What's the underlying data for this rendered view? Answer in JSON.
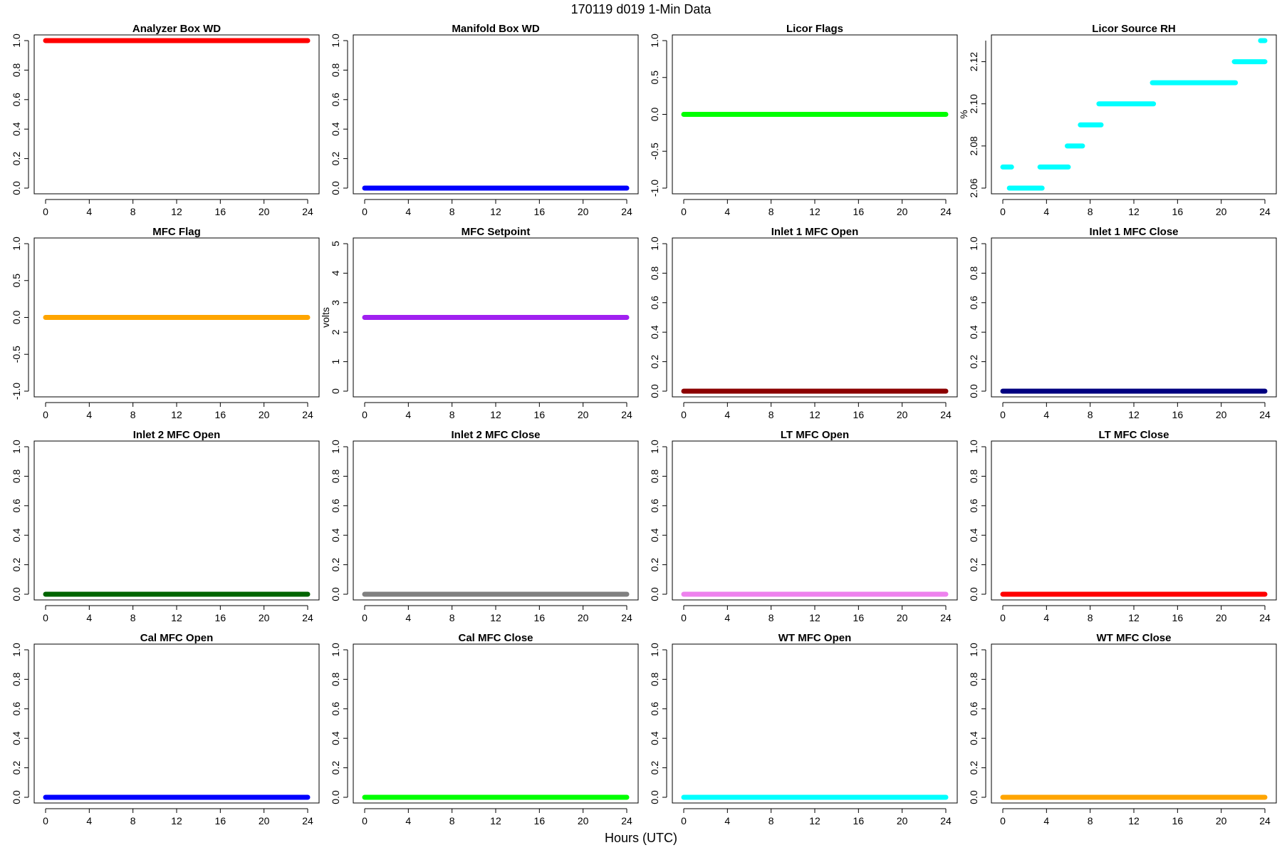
{
  "title": "170119   d019   1-Min Data",
  "xlabel": "Hours (UTC)",
  "chart_data": [
    {
      "type": "scatter",
      "title": "Analyzer Box WD",
      "ylabel": "",
      "color": "#ff0000",
      "xlim": [
        0,
        24
      ],
      "ylim": [
        0,
        1
      ],
      "xticks": [
        0,
        4,
        8,
        12,
        16,
        20,
        24
      ],
      "yticks": [
        0,
        0.2,
        0.4,
        0.6,
        0.8,
        1.0
      ],
      "ytick_labels": [
        "0.0",
        "0.2",
        "0.4",
        "0.6",
        "0.8",
        "1.0"
      ],
      "segments": [
        {
          "x": [
            0,
            24
          ],
          "y": 1
        }
      ]
    },
    {
      "type": "scatter",
      "title": "Manifold Box WD",
      "ylabel": "",
      "color": "#0000ff",
      "xlim": [
        0,
        24
      ],
      "ylim": [
        0,
        1
      ],
      "xticks": [
        0,
        4,
        8,
        12,
        16,
        20,
        24
      ],
      "yticks": [
        0,
        0.2,
        0.4,
        0.6,
        0.8,
        1.0
      ],
      "ytick_labels": [
        "0.0",
        "0.2",
        "0.4",
        "0.6",
        "0.8",
        "1.0"
      ],
      "segments": [
        {
          "x": [
            0,
            24
          ],
          "y": 0
        }
      ]
    },
    {
      "type": "scatter",
      "title": "Licor Flags",
      "ylabel": "",
      "color": "#00ff00",
      "xlim": [
        0,
        24
      ],
      "ylim": [
        -1,
        1
      ],
      "xticks": [
        0,
        4,
        8,
        12,
        16,
        20,
        24
      ],
      "yticks": [
        -1,
        -0.5,
        0,
        0.5,
        1
      ],
      "ytick_labels": [
        "-1.0",
        "-0.5",
        "0.0",
        "0.5",
        "1.0"
      ],
      "segments": [
        {
          "x": [
            0,
            24
          ],
          "y": 0
        }
      ]
    },
    {
      "type": "scatter",
      "title": "Licor Source RH",
      "ylabel": "%",
      "color": "#00ffff",
      "xlim": [
        0,
        24
      ],
      "ylim": [
        2.06,
        2.13
      ],
      "xticks": [
        0,
        4,
        8,
        12,
        16,
        20,
        24
      ],
      "yticks": [
        2.06,
        2.08,
        2.1,
        2.12
      ],
      "ytick_labels": [
        "2.06",
        "2.08",
        "2.10",
        "2.12"
      ],
      "segments": [
        {
          "x": [
            0,
            0.8
          ],
          "y": 2.07
        },
        {
          "x": [
            0.6,
            3.6
          ],
          "y": 2.06
        },
        {
          "x": [
            3.4,
            6.0
          ],
          "y": 2.07
        },
        {
          "x": [
            5.9,
            7.3
          ],
          "y": 2.08
        },
        {
          "x": [
            7.1,
            9.0
          ],
          "y": 2.09
        },
        {
          "x": [
            8.8,
            13.8
          ],
          "y": 2.1
        },
        {
          "x": [
            13.7,
            21.3
          ],
          "y": 2.11
        },
        {
          "x": [
            21.2,
            24
          ],
          "y": 2.12
        },
        {
          "x": [
            23.6,
            24
          ],
          "y": 2.13
        }
      ]
    },
    {
      "type": "scatter",
      "title": "MFC Flag",
      "ylabel": "",
      "color": "#ffa500",
      "xlim": [
        0,
        24
      ],
      "ylim": [
        -1,
        1
      ],
      "xticks": [
        0,
        4,
        8,
        12,
        16,
        20,
        24
      ],
      "yticks": [
        -1,
        -0.5,
        0,
        0.5,
        1
      ],
      "ytick_labels": [
        "-1.0",
        "-0.5",
        "0.0",
        "0.5",
        "1.0"
      ],
      "segments": [
        {
          "x": [
            0,
            24
          ],
          "y": 0
        }
      ]
    },
    {
      "type": "scatter",
      "title": "MFC Setpoint",
      "ylabel": "volts",
      "color": "#a020f0",
      "xlim": [
        0,
        24
      ],
      "ylim": [
        0,
        5
      ],
      "xticks": [
        0,
        4,
        8,
        12,
        16,
        20,
        24
      ],
      "yticks": [
        0,
        1,
        2,
        3,
        4,
        5
      ],
      "ytick_labels": [
        "0",
        "1",
        "2",
        "3",
        "4",
        "5"
      ],
      "segments": [
        {
          "x": [
            0,
            24
          ],
          "y": 2.5
        }
      ]
    },
    {
      "type": "scatter",
      "title": "Inlet 1 MFC Open",
      "ylabel": "",
      "color": "#8b0000",
      "xlim": [
        0,
        24
      ],
      "ylim": [
        0,
        1
      ],
      "xticks": [
        0,
        4,
        8,
        12,
        16,
        20,
        24
      ],
      "yticks": [
        0,
        0.2,
        0.4,
        0.6,
        0.8,
        1.0
      ],
      "ytick_labels": [
        "0.0",
        "0.2",
        "0.4",
        "0.6",
        "0.8",
        "1.0"
      ],
      "segments": [
        {
          "x": [
            0,
            24
          ],
          "y": 0
        }
      ]
    },
    {
      "type": "scatter",
      "title": "Inlet 1 MFC Close",
      "ylabel": "",
      "color": "#000080",
      "xlim": [
        0,
        24
      ],
      "ylim": [
        0,
        1
      ],
      "xticks": [
        0,
        4,
        8,
        12,
        16,
        20,
        24
      ],
      "yticks": [
        0,
        0.2,
        0.4,
        0.6,
        0.8,
        1.0
      ],
      "ytick_labels": [
        "0.0",
        "0.2",
        "0.4",
        "0.6",
        "0.8",
        "1.0"
      ],
      "segments": [
        {
          "x": [
            0,
            24
          ],
          "y": 0
        }
      ]
    },
    {
      "type": "scatter",
      "title": "Inlet 2 MFC Open",
      "ylabel": "",
      "color": "#006400",
      "xlim": [
        0,
        24
      ],
      "ylim": [
        0,
        1
      ],
      "xticks": [
        0,
        4,
        8,
        12,
        16,
        20,
        24
      ],
      "yticks": [
        0,
        0.2,
        0.4,
        0.6,
        0.8,
        1.0
      ],
      "ytick_labels": [
        "0.0",
        "0.2",
        "0.4",
        "0.6",
        "0.8",
        "1.0"
      ],
      "segments": [
        {
          "x": [
            0,
            24
          ],
          "y": 0
        }
      ]
    },
    {
      "type": "scatter",
      "title": "Inlet 2 MFC Close",
      "ylabel": "",
      "color": "#808080",
      "xlim": [
        0,
        24
      ],
      "ylim": [
        0,
        1
      ],
      "xticks": [
        0,
        4,
        8,
        12,
        16,
        20,
        24
      ],
      "yticks": [
        0,
        0.2,
        0.4,
        0.6,
        0.8,
        1.0
      ],
      "ytick_labels": [
        "0.0",
        "0.2",
        "0.4",
        "0.6",
        "0.8",
        "1.0"
      ],
      "segments": [
        {
          "x": [
            0,
            24
          ],
          "y": 0
        }
      ]
    },
    {
      "type": "scatter",
      "title": "LT MFC Open",
      "ylabel": "",
      "color": "#ee82ee",
      "xlim": [
        0,
        24
      ],
      "ylim": [
        0,
        1
      ],
      "xticks": [
        0,
        4,
        8,
        12,
        16,
        20,
        24
      ],
      "yticks": [
        0,
        0.2,
        0.4,
        0.6,
        0.8,
        1.0
      ],
      "ytick_labels": [
        "0.0",
        "0.2",
        "0.4",
        "0.6",
        "0.8",
        "1.0"
      ],
      "segments": [
        {
          "x": [
            0,
            24
          ],
          "y": 0
        }
      ]
    },
    {
      "type": "scatter",
      "title": "LT MFC Close",
      "ylabel": "",
      "color": "#ff0000",
      "xlim": [
        0,
        24
      ],
      "ylim": [
        0,
        1
      ],
      "xticks": [
        0,
        4,
        8,
        12,
        16,
        20,
        24
      ],
      "yticks": [
        0,
        0.2,
        0.4,
        0.6,
        0.8,
        1.0
      ],
      "ytick_labels": [
        "0.0",
        "0.2",
        "0.4",
        "0.6",
        "0.8",
        "1.0"
      ],
      "segments": [
        {
          "x": [
            0,
            24
          ],
          "y": 0
        }
      ]
    },
    {
      "type": "scatter",
      "title": "Cal MFC Open",
      "ylabel": "",
      "color": "#0000ff",
      "xlim": [
        0,
        24
      ],
      "ylim": [
        0,
        1
      ],
      "xticks": [
        0,
        4,
        8,
        12,
        16,
        20,
        24
      ],
      "yticks": [
        0,
        0.2,
        0.4,
        0.6,
        0.8,
        1.0
      ],
      "ytick_labels": [
        "0.0",
        "0.2",
        "0.4",
        "0.6",
        "0.8",
        "1.0"
      ],
      "segments": [
        {
          "x": [
            0,
            24
          ],
          "y": 0
        }
      ]
    },
    {
      "type": "scatter",
      "title": "Cal MFC Close",
      "ylabel": "",
      "color": "#00ff00",
      "xlim": [
        0,
        24
      ],
      "ylim": [
        0,
        1
      ],
      "xticks": [
        0,
        4,
        8,
        12,
        16,
        20,
        24
      ],
      "yticks": [
        0,
        0.2,
        0.4,
        0.6,
        0.8,
        1.0
      ],
      "ytick_labels": [
        "0.0",
        "0.2",
        "0.4",
        "0.6",
        "0.8",
        "1.0"
      ],
      "segments": [
        {
          "x": [
            0,
            24
          ],
          "y": 0
        }
      ]
    },
    {
      "type": "scatter",
      "title": "WT MFC Open",
      "ylabel": "",
      "color": "#00ffff",
      "xlim": [
        0,
        24
      ],
      "ylim": [
        0,
        1
      ],
      "xticks": [
        0,
        4,
        8,
        12,
        16,
        20,
        24
      ],
      "yticks": [
        0,
        0.2,
        0.4,
        0.6,
        0.8,
        1.0
      ],
      "ytick_labels": [
        "0.0",
        "0.2",
        "0.4",
        "0.6",
        "0.8",
        "1.0"
      ],
      "segments": [
        {
          "x": [
            0,
            24
          ],
          "y": 0
        }
      ]
    },
    {
      "type": "scatter",
      "title": "WT MFC Close",
      "ylabel": "",
      "color": "#ffa500",
      "xlim": [
        0,
        24
      ],
      "ylim": [
        0,
        1
      ],
      "xticks": [
        0,
        4,
        8,
        12,
        16,
        20,
        24
      ],
      "yticks": [
        0,
        0.2,
        0.4,
        0.6,
        0.8,
        1.0
      ],
      "ytick_labels": [
        "0.0",
        "0.2",
        "0.4",
        "0.6",
        "0.8",
        "1.0"
      ],
      "segments": [
        {
          "x": [
            0,
            24
          ],
          "y": 0
        }
      ]
    }
  ]
}
